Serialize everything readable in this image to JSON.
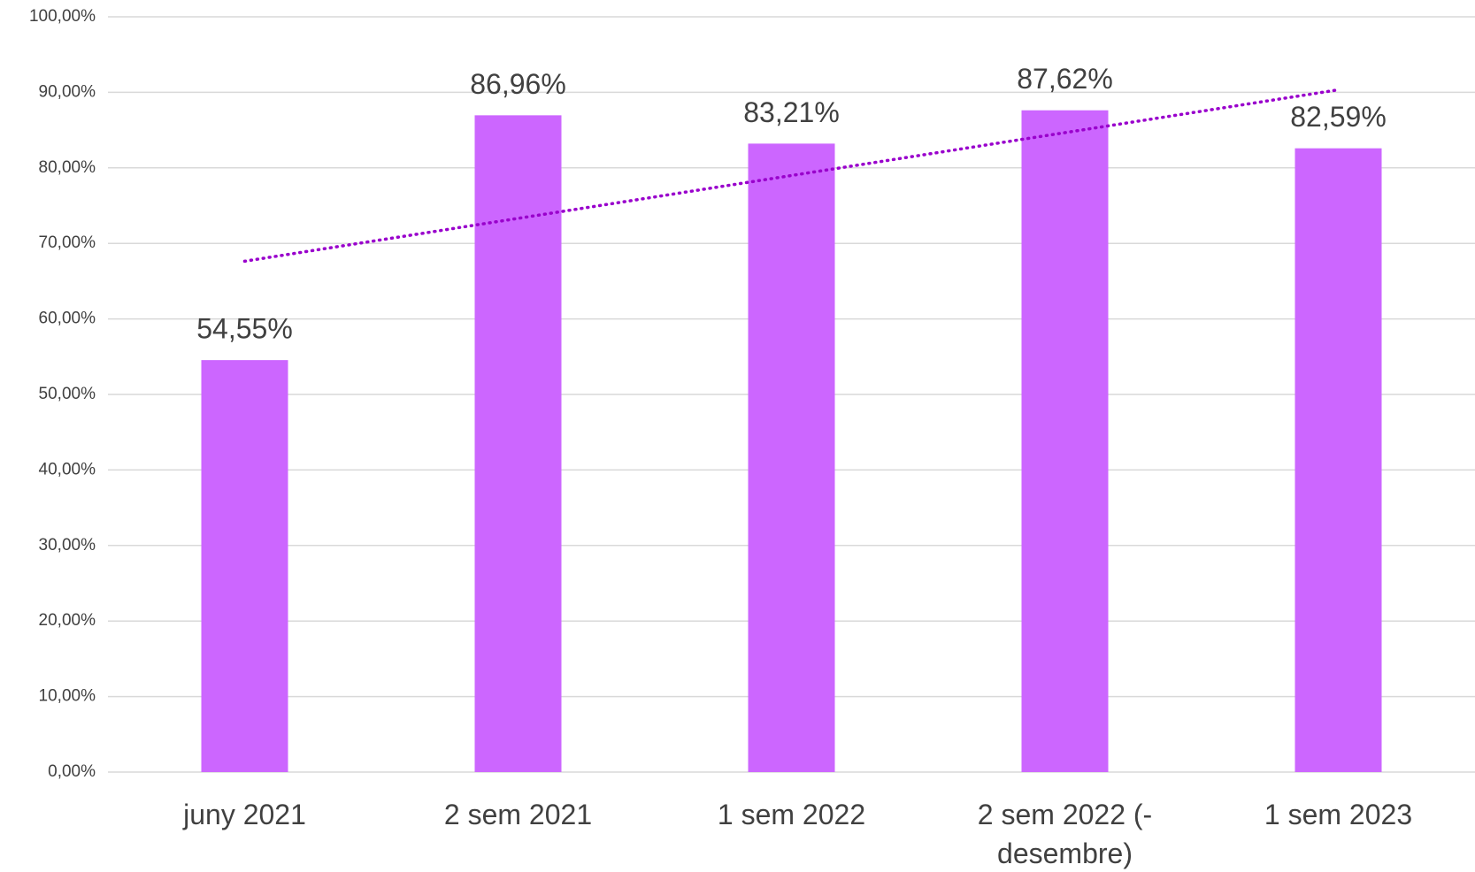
{
  "chart_data": {
    "type": "bar",
    "categories": [
      "juny  2021",
      "2 sem 2021",
      "1 sem 2022",
      "2 sem 2022 (- desembre)",
      "1 sem 2023"
    ],
    "values": [
      54.55,
      86.96,
      83.21,
      87.62,
      82.59
    ],
    "value_labels": [
      "54,55%",
      "86,96%",
      "83,21%",
      "87,62%",
      "82,59%"
    ],
    "color": "#cc66ff",
    "trendline": {
      "type": "linear",
      "color": "#9900cc",
      "style": "dotted"
    },
    "ylim": [
      0,
      100
    ],
    "yticks": [
      {
        "value": 0,
        "label": "0,00%"
      },
      {
        "value": 10,
        "label": "10,00%"
      },
      {
        "value": 20,
        "label": "20,00%"
      },
      {
        "value": 30,
        "label": "30,00%"
      },
      {
        "value": 40,
        "label": "40,00%"
      },
      {
        "value": 50,
        "label": "50,00%"
      },
      {
        "value": 60,
        "label": "60,00%"
      },
      {
        "value": 70,
        "label": "70,00%"
      },
      {
        "value": 80,
        "label": "80,00%"
      },
      {
        "value": 90,
        "label": "90,00%"
      },
      {
        "value": 100,
        "label": "100,00%"
      }
    ],
    "grid": true
  }
}
